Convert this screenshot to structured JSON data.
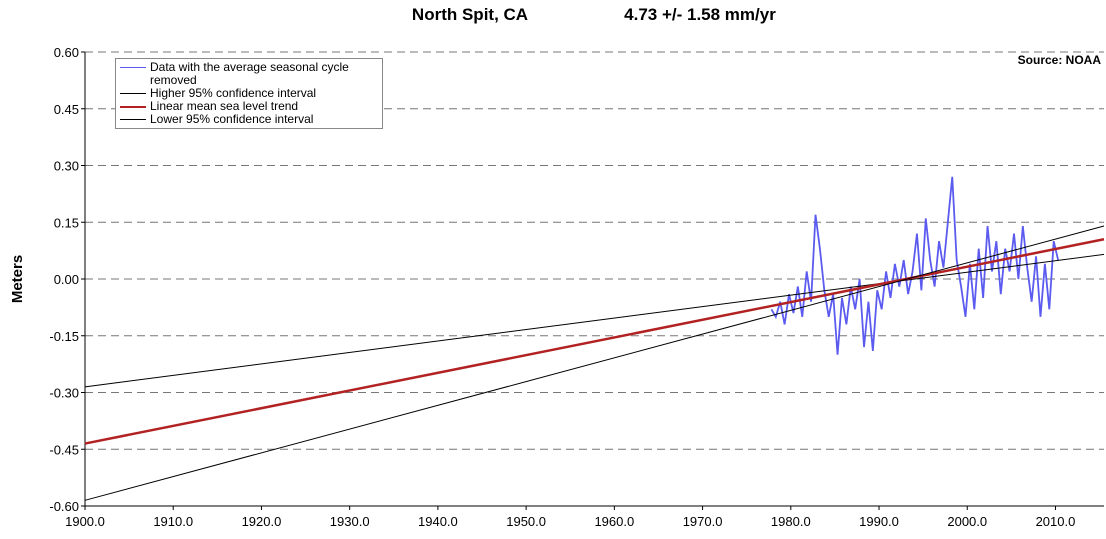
{
  "chart_data": {
    "type": "line",
    "title": "North Spit, CA",
    "subtitle": "4.73 +/- 1.58 mm/yr",
    "annotation": "Source: NOAA",
    "y_label": "Meters",
    "xlim": [
      1900,
      2015.5
    ],
    "ylim": [
      -0.6,
      0.6
    ],
    "xticks": [
      {
        "value": 1900,
        "label": "1900.0"
      },
      {
        "value": 1910,
        "label": "1910.0"
      },
      {
        "value": 1920,
        "label": "1920.0"
      },
      {
        "value": 1930,
        "label": "1930.0"
      },
      {
        "value": 1940,
        "label": "1940.0"
      },
      {
        "value": 1950,
        "label": "1950.0"
      },
      {
        "value": 1960,
        "label": "1960.0"
      },
      {
        "value": 1970,
        "label": "1970.0"
      },
      {
        "value": 1980,
        "label": "1980.0"
      },
      {
        "value": 1990,
        "label": "1990.0"
      },
      {
        "value": 2000,
        "label": "2000.0"
      },
      {
        "value": 2010,
        "label": "2010.0"
      }
    ],
    "yticks": [
      {
        "value": -0.6,
        "label": "-0.60"
      },
      {
        "value": -0.45,
        "label": "-0.45"
      },
      {
        "value": -0.3,
        "label": "-0.30"
      },
      {
        "value": -0.15,
        "label": "-0.15"
      },
      {
        "value": 0,
        "label": "0.00"
      },
      {
        "value": 0.15,
        "label": "0.15"
      },
      {
        "value": 0.3,
        "label": "0.30"
      },
      {
        "value": 0.45,
        "label": "0.45"
      },
      {
        "value": 0.6,
        "label": "0.60"
      }
    ],
    "grid": true,
    "legend": "top-left",
    "series": [
      {
        "name": "Data with the average seasonal cycle removed",
        "color": "#5b5bf0",
        "x": [
          1977.8,
          1978.3,
          1978.8,
          1979.3,
          1979.8,
          1980.3,
          1980.8,
          1981.3,
          1981.8,
          1982.3,
          1982.8,
          1983.3,
          1983.8,
          1984.3,
          1984.8,
          1985.3,
          1985.8,
          1986.3,
          1986.8,
          1987.3,
          1987.8,
          1988.3,
          1988.8,
          1989.3,
          1989.8,
          1990.3,
          1990.8,
          1991.3,
          1991.8,
          1992.3,
          1992.8,
          1993.3,
          1993.8,
          1994.3,
          1994.8,
          1995.3,
          1995.8,
          1996.3,
          1996.8,
          1997.3,
          1997.8,
          1998.3,
          1998.8,
          1999.3,
          1999.8,
          2000.3,
          2000.8,
          2001.3,
          2001.8,
          2002.3,
          2002.8,
          2003.3,
          2003.8,
          2004.3,
          2004.8,
          2005.3,
          2005.8,
          2006.3,
          2006.8,
          2007.3,
          2007.8,
          2008.3,
          2008.8,
          2009.3,
          2009.8,
          2010.3
        ],
        "values": [
          -0.08,
          -0.1,
          -0.06,
          -0.12,
          -0.04,
          -0.09,
          -0.02,
          -0.1,
          0.02,
          -0.06,
          0.17,
          0.08,
          -0.03,
          -0.1,
          -0.04,
          -0.2,
          -0.05,
          -0.12,
          -0.02,
          -0.08,
          0.0,
          -0.18,
          -0.06,
          -0.19,
          -0.03,
          -0.08,
          0.02,
          -0.05,
          0.04,
          -0.02,
          0.05,
          -0.04,
          0.02,
          0.12,
          -0.03,
          0.16,
          0.05,
          -0.02,
          0.1,
          0.03,
          0.15,
          0.27,
          0.05,
          -0.02,
          -0.1,
          0.04,
          -0.08,
          0.08,
          -0.05,
          0.14,
          0.02,
          0.1,
          -0.04,
          0.08,
          0.02,
          0.12,
          0.0,
          0.14,
          0.03,
          -0.06,
          0.06,
          -0.1,
          0.04,
          -0.08,
          0.1,
          0.05
        ]
      },
      {
        "name": "Higher 95% confidence interval",
        "color": "#000000",
        "x": [
          1900,
          2015.5
        ],
        "values": [
          -0.285,
          0.065
        ]
      },
      {
        "name": "Linear mean sea level trend",
        "color": "#b22222",
        "x": [
          1900,
          2015.5
        ],
        "values": [
          -0.435,
          0.105
        ]
      },
      {
        "name": "Lower 95% confidence interval",
        "color": "#000000",
        "x": [
          1900,
          2015.5
        ],
        "values": [
          -0.585,
          0.14
        ]
      }
    ]
  }
}
